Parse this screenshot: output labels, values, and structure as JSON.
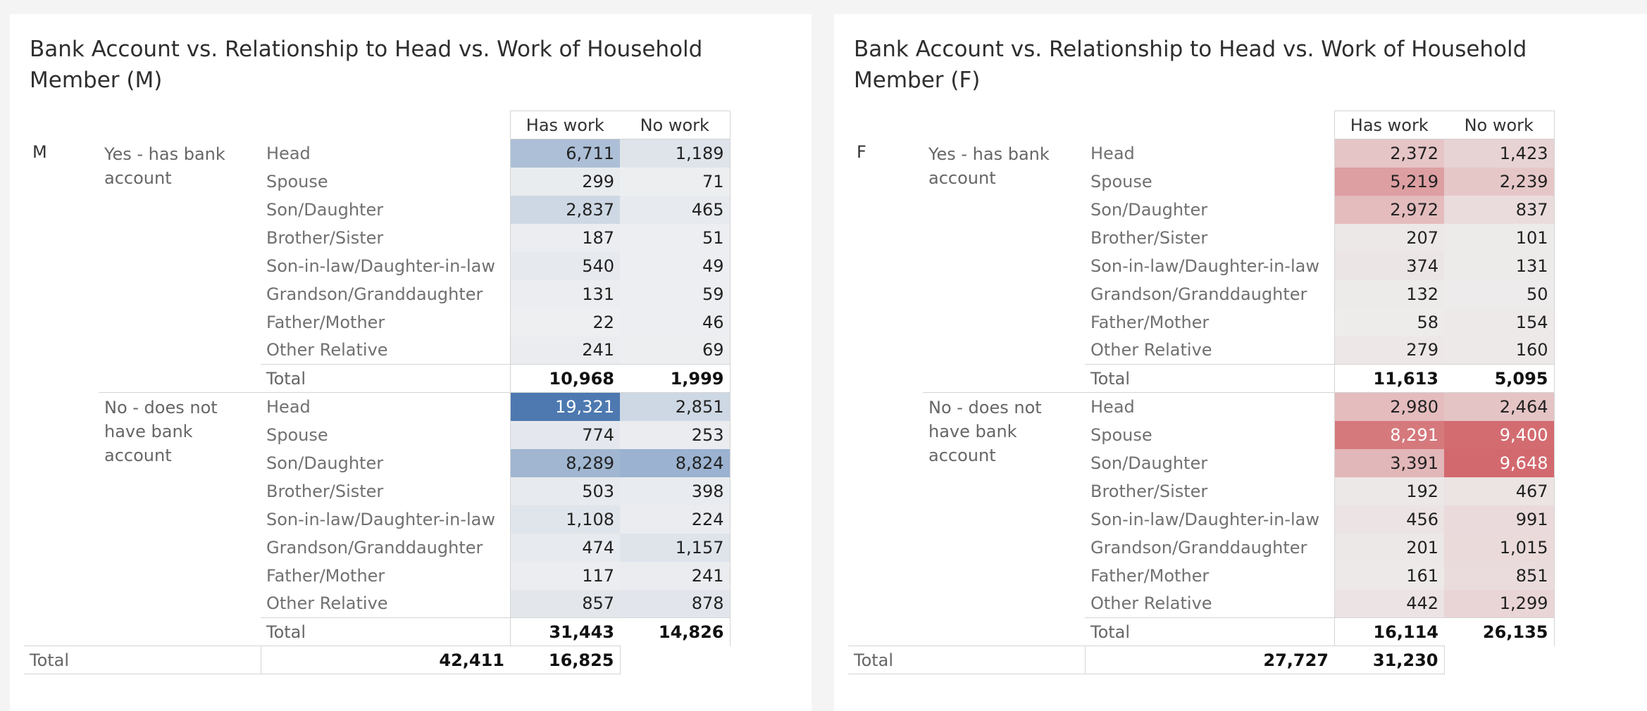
{
  "chart_data": [
    {
      "type": "table",
      "title": "Bank Account vs. Relationship to Head vs. Work of Household Member (M)",
      "gender_label": "M",
      "columns": [
        "Has work",
        "No work"
      ],
      "color_scale": {
        "base": "#eeeff1",
        "max": "#4d79b0"
      },
      "groups": [
        {
          "label": "Yes - has bank account",
          "rows": [
            {
              "label": "Head",
              "values": [
                6711,
                1189
              ]
            },
            {
              "label": "Spouse",
              "values": [
                299,
                71
              ]
            },
            {
              "label": "Son/Daughter",
              "values": [
                2837,
                465
              ]
            },
            {
              "label": "Brother/Sister",
              "values": [
                187,
                51
              ]
            },
            {
              "label": "Son-in-law/Daughter-in-law",
              "values": [
                540,
                49
              ]
            },
            {
              "label": "Grandson/Granddaughter",
              "values": [
                131,
                59
              ]
            },
            {
              "label": "Father/Mother",
              "values": [
                22,
                46
              ]
            },
            {
              "label": "Other Relative",
              "values": [
                241,
                69
              ]
            }
          ],
          "total_label": "Total",
          "total": [
            10968,
            1999
          ]
        },
        {
          "label": "No - does not have bank account",
          "rows": [
            {
              "label": "Head",
              "values": [
                19321,
                2851
              ]
            },
            {
              "label": "Spouse",
              "values": [
                774,
                253
              ]
            },
            {
              "label": "Son/Daughter",
              "values": [
                8289,
                8824
              ]
            },
            {
              "label": "Brother/Sister",
              "values": [
                503,
                398
              ]
            },
            {
              "label": "Son-in-law/Daughter-in-law",
              "values": [
                1108,
                224
              ]
            },
            {
              "label": "Grandson/Granddaughter",
              "values": [
                474,
                1157
              ]
            },
            {
              "label": "Father/Mother",
              "values": [
                117,
                241
              ]
            },
            {
              "label": "Other Relative",
              "values": [
                857,
                878
              ]
            }
          ],
          "total_label": "Total",
          "total": [
            31443,
            14826
          ]
        }
      ],
      "grand_total_label": "Total",
      "grand_total": [
        42411,
        16825
      ]
    },
    {
      "type": "table",
      "title": "Bank Account vs. Relationship to Head vs. Work of Household Member (F)",
      "gender_label": "F",
      "columns": [
        "Has work",
        "No work"
      ],
      "color_scale": {
        "base": "#eeeded",
        "max": "#d2696e"
      },
      "groups": [
        {
          "label": "Yes - has bank account",
          "rows": [
            {
              "label": "Head",
              "values": [
                2372,
                1423
              ]
            },
            {
              "label": "Spouse",
              "values": [
                5219,
                2239
              ]
            },
            {
              "label": "Son/Daughter",
              "values": [
                2972,
                837
              ]
            },
            {
              "label": "Brother/Sister",
              "values": [
                207,
                101
              ]
            },
            {
              "label": "Son-in-law/Daughter-in-law",
              "values": [
                374,
                131
              ]
            },
            {
              "label": "Grandson/Granddaughter",
              "values": [
                132,
                50
              ]
            },
            {
              "label": "Father/Mother",
              "values": [
                58,
                154
              ]
            },
            {
              "label": "Other Relative",
              "values": [
                279,
                160
              ]
            }
          ],
          "total_label": "Total",
          "total": [
            11613,
            5095
          ]
        },
        {
          "label": "No - does not have bank account",
          "rows": [
            {
              "label": "Head",
              "values": [
                2980,
                2464
              ]
            },
            {
              "label": "Spouse",
              "values": [
                8291,
                9400
              ]
            },
            {
              "label": "Son/Daughter",
              "values": [
                3391,
                9648
              ]
            },
            {
              "label": "Brother/Sister",
              "values": [
                192,
                467
              ]
            },
            {
              "label": "Son-in-law/Daughter-in-law",
              "values": [
                456,
                991
              ]
            },
            {
              "label": "Grandson/Granddaughter",
              "values": [
                201,
                1015
              ]
            },
            {
              "label": "Father/Mother",
              "values": [
                161,
                851
              ]
            },
            {
              "label": "Other Relative",
              "values": [
                442,
                1299
              ]
            }
          ],
          "total_label": "Total",
          "total": [
            16114,
            26135
          ]
        }
      ],
      "grand_total_label": "Total",
      "grand_total": [
        27727,
        31230
      ]
    }
  ]
}
